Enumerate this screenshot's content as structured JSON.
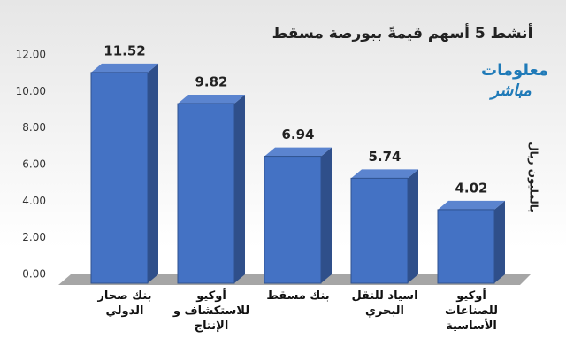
{
  "chart_data": {
    "type": "bar3d",
    "title": "أنشط 5 أسهم قيمةً ببورصة مسقط",
    "y_label": "بالمليون ريال",
    "categories": [
      "بنك صحار الدولي",
      "أوكيو للاستكشاف و الإنتاج",
      "بنك مسقط",
      "اسياد للنقل البحري",
      "أوكيو للصناعات الأساسية"
    ],
    "values": [
      11.52,
      9.82,
      6.94,
      5.74,
      4.02
    ],
    "color": "#4472c4",
    "ylim": [
      0,
      12
    ],
    "yticks": [
      {
        "value": 0,
        "label": "0.00"
      },
      {
        "value": 2,
        "label": "2.00"
      },
      {
        "value": 4,
        "label": "4.00"
      },
      {
        "value": 6,
        "label": "6.00"
      },
      {
        "value": 8,
        "label": "8.00"
      },
      {
        "value": 10,
        "label": "10.00"
      },
      {
        "value": 12,
        "label": "12.00"
      }
    ]
  },
  "logo": [
    "معلومات",
    "مباشر"
  ]
}
